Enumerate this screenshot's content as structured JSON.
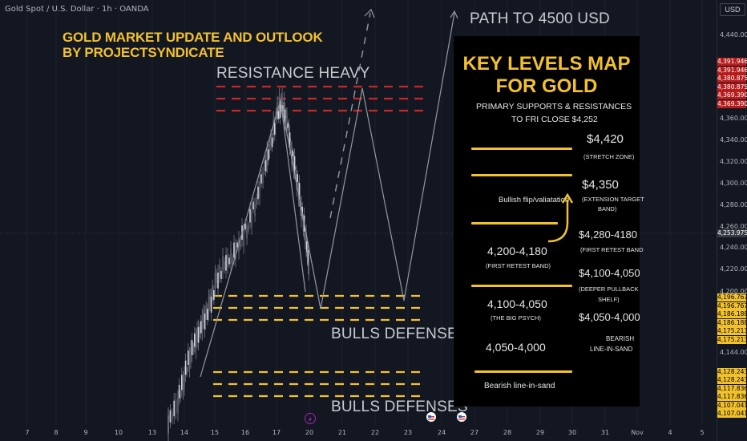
{
  "chart_data": {
    "type": "line",
    "symbol": "Gold Spot / U.S. Dollar · 1h · OANDA",
    "currency": "USD",
    "title": "GOLD MARKET UPDATE AND OUTLOOK",
    "subtitle": "BY PROJECTSYNDICATE",
    "x_ticks": [
      "7",
      "8",
      "9",
      "10",
      "13",
      "14",
      "15",
      "16",
      "17",
      "20",
      "21",
      "22",
      "23",
      "24",
      "27",
      "28",
      "29",
      "30",
      "31",
      "Nov",
      "4",
      "5"
    ],
    "y_ticks": [
      "4,440.000",
      "4,400.000",
      "4,360.000",
      "4,340.000",
      "4,320.000",
      "4,300.000",
      "4,280.000",
      "4,260.000",
      "4,240.000",
      "4,220.000",
      "4,200.000",
      "4,144.000"
    ],
    "y_range": [
      4100,
      4460
    ],
    "price_tags": {
      "red": [
        "4,391.946",
        "4,391.946",
        "4,380.875",
        "4,380.875",
        "4,369.390",
        "4,369.390"
      ],
      "current": "4,253.975",
      "yellow": [
        "4,196.767",
        "4,196.767",
        "4,186.188",
        "4,186.188",
        "4,175.213",
        "4,175.213",
        "4,128.243",
        "4,128.243",
        "4,117.836",
        "4,117.836",
        "4,107.041",
        "4,107.041"
      ]
    },
    "annotations": {
      "path": "PATH TO 4500 USD",
      "resistance": "RESISTANCE HEAVY",
      "bulls1": "BULLS DEFENSES",
      "bulls2": "BULLS DEFENSES"
    },
    "resistance_levels": [
      4391.946,
      4380.875,
      4369.39
    ],
    "support_zone_1": [
      4196.767,
      4186.188,
      4175.213
    ],
    "support_zone_2": [
      4128.243,
      4117.836,
      4107.041
    ]
  },
  "panel": {
    "title1": "KEY LEVELS MAP",
    "title2": "FOR GOLD",
    "sub1": "PRIMARY SUPPORTS & RESISTANCES",
    "sub2": "TO FRI CLOSE $4,252",
    "r1": "$4,420",
    "r1_note": "(STRETCH ZONE)",
    "r2": "$4,350",
    "r2_note1": "(EXTENSION TARGET",
    "r2_note2": "BAND)",
    "flip": "Bullish flip/valiatation",
    "r3": "$4,280-4180",
    "r3_note": "(FIRST RETEST BAND",
    "l1": "4,200-4,180",
    "l1_note": "(FIRST RETEST BAND)",
    "r4": "$4,100-4,050",
    "r4_note1": "(DEEPER PULLBACK",
    "r4_note2": "SHELF)",
    "l2": "4,100-4,050",
    "l2_note": "(THE BIG PSYCH)",
    "r5": "$4,050-4,000",
    "r5_note1": "BEARISH",
    "r5_note2": "LINE-IN-SAND",
    "l3": "4,050-4,000",
    "footer": "Bearish line-in-sand"
  },
  "colors": {
    "background": "#131722",
    "gold": "#f2c12e",
    "resistance": "#c62828",
    "candles": "#b2b5be",
    "panel": "#000000"
  }
}
